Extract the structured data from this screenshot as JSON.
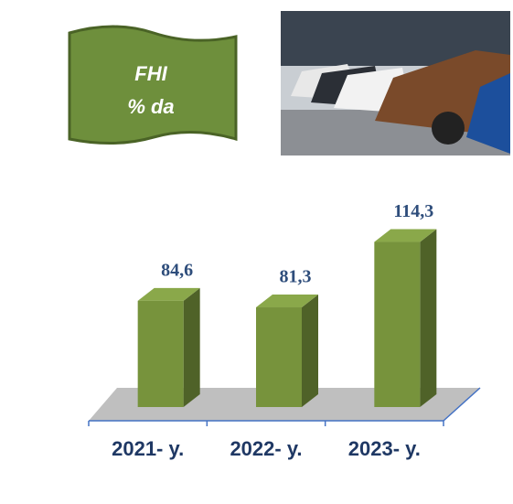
{
  "chart_data": {
    "type": "bar3d",
    "title": "FHI",
    "subtitle": "% da",
    "categories": [
      "2021- y.",
      "2022- y.",
      "2023- y."
    ],
    "values": [
      84.6,
      81.3,
      114.3
    ],
    "value_labels": [
      "84,6",
      "81,3",
      "114,3"
    ],
    "color": "#77933c",
    "ylim": [
      31,
      115
    ]
  }
}
